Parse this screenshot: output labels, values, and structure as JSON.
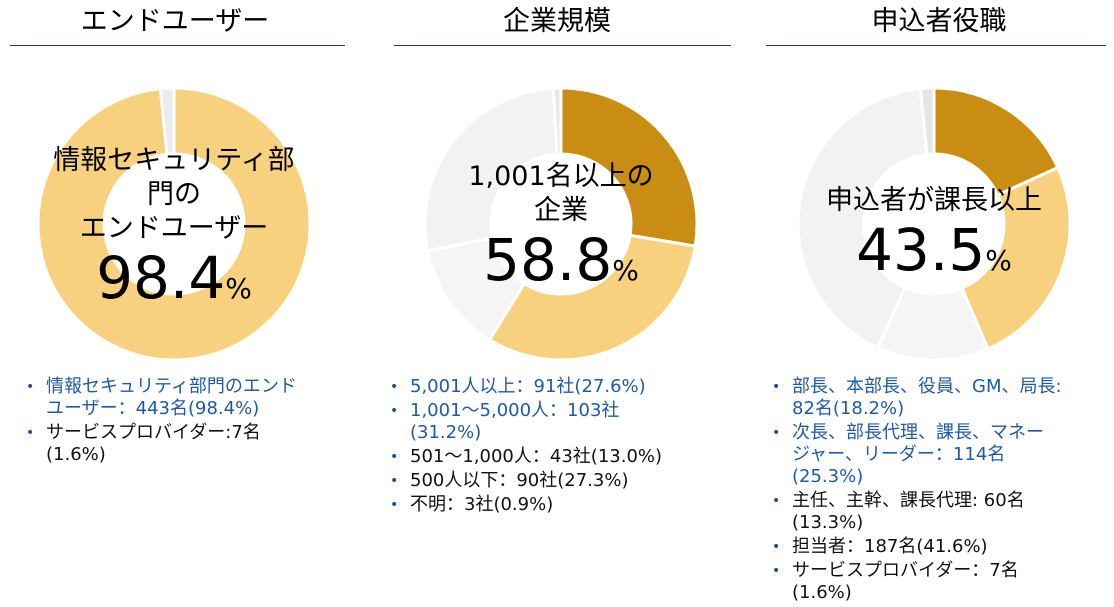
{
  "charts": [
    {
      "title": "エンドユーザー",
      "center_label": "情報セキュリティ部\n門の\nエンドユーザー",
      "center_value": "98.4",
      "center_unit": "%",
      "legend": [
        {
          "text": "情報セキュリティ部門のエンド\nユーザー：443名(98.4%)",
          "highlight": true
        },
        {
          "text": "サービスプロバイダー:7名\n(1.6%)",
          "highlight": false
        }
      ]
    },
    {
      "title": "企業規模",
      "center_label": "1,001名以上の\n企業",
      "center_value": "58.8",
      "center_unit": "%",
      "legend": [
        {
          "text": "5,001人以上：91社(27.6%)",
          "highlight": true
        },
        {
          "text": "1,001～5,000人：103社\n(31.2%)",
          "highlight": true
        },
        {
          "text": "501～1,000人：43社(13.0%)",
          "highlight": false
        },
        {
          "text": "500人以下：90社(27.3%)",
          "highlight": false
        },
        {
          "text": "不明：3社(0.9%)",
          "highlight": false
        }
      ]
    },
    {
      "title": "申込者役職",
      "center_label": "申込者が課長以上",
      "center_value": "43.5",
      "center_unit": "%",
      "legend": [
        {
          "text": "部長、本部長、役員、GM、局長:\n82名(18.2%)",
          "highlight": true
        },
        {
          "text": "次長、部長代理、課長、マネー\nジャー、リーダー：114名\n(25.3%)",
          "highlight": true
        },
        {
          "text": "主任、主幹、課長代理: 60名\n(13.3%)",
          "highlight": false
        },
        {
          "text": "担当者：187名(41.6%)",
          "highlight": false
        },
        {
          "text": "サービスプロバイダー：7名\n(1.6%)",
          "highlight": false
        }
      ]
    }
  ],
  "chart_data": [
    {
      "type": "pie",
      "title": "エンドユーザー",
      "categories": [
        "情報セキュリティ部門のエンドユーザー",
        "サービスプロバイダー"
      ],
      "values": [
        98.4,
        1.6
      ],
      "counts": [
        443,
        7
      ],
      "colors": [
        "#f8d17f",
        "#ececec"
      ]
    },
    {
      "type": "pie",
      "title": "企業規模",
      "categories": [
        "5,001人以上",
        "1,001～5,000人",
        "501～1,000人",
        "500人以下",
        "不明"
      ],
      "values": [
        27.6,
        31.2,
        13.0,
        27.3,
        0.9
      ],
      "counts": [
        91,
        103,
        43,
        90,
        3
      ],
      "colors": [
        "#c88d12",
        "#f8d17f",
        "#f5f5f5",
        "#f2f2f2",
        "#e8e8e8"
      ]
    },
    {
      "type": "pie",
      "title": "申込者役職",
      "categories": [
        "部長、本部長、役員、GM、局長",
        "次長、部長代理、課長、マネージャー、リーダー",
        "主任、主幹、課長代理",
        "担当者",
        "サービスプロバイダー"
      ],
      "values": [
        18.2,
        25.3,
        13.3,
        41.6,
        1.6
      ],
      "counts": [
        82,
        114,
        60,
        187,
        7
      ],
      "colors": [
        "#c88d12",
        "#f8d17f",
        "#f5f5f5",
        "#f2f2f2",
        "#e6e6e6"
      ]
    }
  ]
}
